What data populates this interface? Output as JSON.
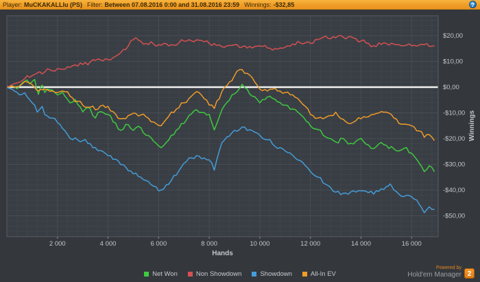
{
  "title_bar": {
    "player_label": "Player:",
    "player_value": "MuCKAKALLlu (PS)",
    "filter_label": "Filter:",
    "filter_value": "Between 07.08.2016 0:00 and 31.08.2016 23:59",
    "winnings_label": "Winnings:",
    "winnings_value": "-$32,85",
    "help_icon_glyph": "?",
    "bar_color": "#f0a02c"
  },
  "footer": {
    "powered_by": "Powered by",
    "brand": "Hold'em Manager",
    "badge": "2",
    "badge_color": "#e8851c"
  },
  "chart_data": {
    "type": "line",
    "title": "",
    "xlabel": "Hands",
    "ylabel": "Winnings",
    "xlim": [
      0,
      17050
    ],
    "ylim": [
      -58,
      27.5
    ],
    "grid": "major+minor",
    "zero_line": true,
    "zero_line_color": "#f2f2f2",
    "legend_position": "bottom",
    "x_ticks": [
      2000,
      4000,
      6000,
      8000,
      10000,
      12000,
      14000,
      16000
    ],
    "x_tick_labels": [
      "2 000",
      "4 000",
      "6 000",
      "8 000",
      "10 000",
      "12 000",
      "14 000",
      "16 000"
    ],
    "y_ticks": [
      20,
      10,
      0,
      -10,
      -20,
      -30,
      -40,
      -50
    ],
    "y_tick_labels": [
      "$20,00",
      "$10,00",
      "$0,00",
      "-$10,00",
      "-$20,00",
      "-$30,00",
      "-$40,00",
      "-$50,00"
    ],
    "series": [
      {
        "name": "Net Won",
        "color": "#3ecb3e",
        "points": [
          [
            0,
            0
          ],
          [
            200,
            0.5
          ],
          [
            400,
            -0.6
          ],
          [
            600,
            1.5
          ],
          [
            800,
            2.8
          ],
          [
            900,
            1.2
          ],
          [
            1000,
            2.2
          ],
          [
            1100,
            3.0
          ],
          [
            1250,
            -2.8
          ],
          [
            1400,
            0.8
          ],
          [
            1500,
            -2.1
          ],
          [
            1700,
            -1.0
          ],
          [
            2000,
            -3.0
          ],
          [
            2200,
            -2.0
          ],
          [
            2500,
            -6.1
          ],
          [
            2700,
            -4.8
          ],
          [
            3000,
            -9.6
          ],
          [
            3200,
            -7.8
          ],
          [
            3500,
            -12.0
          ],
          [
            3700,
            -9.5
          ],
          [
            4000,
            -10.6
          ],
          [
            4200,
            -13.5
          ],
          [
            4500,
            -16.8
          ],
          [
            4700,
            -14.5
          ],
          [
            5000,
            -16.8
          ],
          [
            5200,
            -15.2
          ],
          [
            5500,
            -18.7
          ],
          [
            5800,
            -21.0
          ],
          [
            6100,
            -23.5
          ],
          [
            6300,
            -21.5
          ],
          [
            6500,
            -18.7
          ],
          [
            6800,
            -16.0
          ],
          [
            7000,
            -14.1
          ],
          [
            7200,
            -11.0
          ],
          [
            7500,
            -8.8
          ],
          [
            7700,
            -9.8
          ],
          [
            8000,
            -10.6
          ],
          [
            8200,
            -16.6
          ],
          [
            8400,
            -11.5
          ],
          [
            8500,
            -8.8
          ],
          [
            8800,
            -5.0
          ],
          [
            9000,
            -2.6
          ],
          [
            9300,
            1.1
          ],
          [
            9500,
            -0.8
          ],
          [
            9700,
            -3.5
          ],
          [
            10000,
            -6.1
          ],
          [
            10300,
            -3.8
          ],
          [
            10500,
            -4.4
          ],
          [
            10800,
            -6.0
          ],
          [
            11000,
            -7.0
          ],
          [
            11300,
            -8.5
          ],
          [
            11500,
            -9.7
          ],
          [
            12000,
            -15.0
          ],
          [
            12300,
            -16.5
          ],
          [
            12500,
            -18.7
          ],
          [
            12800,
            -20.0
          ],
          [
            13000,
            -21.3
          ],
          [
            13300,
            -20.0
          ],
          [
            13500,
            -22.1
          ],
          [
            13800,
            -21.0
          ],
          [
            14000,
            -19.9
          ],
          [
            14300,
            -22.5
          ],
          [
            14500,
            -23.9
          ],
          [
            14800,
            -21.5
          ],
          [
            15000,
            -22.6
          ],
          [
            15300,
            -24.0
          ],
          [
            15500,
            -24.8
          ],
          [
            15800,
            -23.5
          ],
          [
            16000,
            -25.7
          ],
          [
            16300,
            -29.5
          ],
          [
            16500,
            -32.8
          ],
          [
            16700,
            -30.5
          ],
          [
            16900,
            -32.85
          ]
        ]
      },
      {
        "name": "Non Showdown",
        "color": "#d55152",
        "points": [
          [
            0,
            0
          ],
          [
            200,
            1.0
          ],
          [
            400,
            1.6
          ],
          [
            500,
            1.9
          ],
          [
            700,
            3.2
          ],
          [
            1000,
            4.5
          ],
          [
            1200,
            5.5
          ],
          [
            1500,
            5.9
          ],
          [
            1700,
            6.8
          ],
          [
            2000,
            7.2
          ],
          [
            2300,
            7.0
          ],
          [
            2500,
            7.7
          ],
          [
            2800,
            8.2
          ],
          [
            3000,
            8.8
          ],
          [
            3300,
            9.8
          ],
          [
            3500,
            10.4
          ],
          [
            3800,
            10.2
          ],
          [
            4000,
            10.7
          ],
          [
            4300,
            12.0
          ],
          [
            4500,
            13.4
          ],
          [
            4800,
            16.0
          ],
          [
            5000,
            18.5
          ],
          [
            5100,
            19.2
          ],
          [
            5300,
            17.8
          ],
          [
            5500,
            17.0
          ],
          [
            5800,
            16.8
          ],
          [
            6000,
            16.5
          ],
          [
            6300,
            16.9
          ],
          [
            6500,
            16.5
          ],
          [
            6800,
            17.2
          ],
          [
            7000,
            17.9
          ],
          [
            7300,
            18.0
          ],
          [
            7500,
            18.4
          ],
          [
            7800,
            17.6
          ],
          [
            8000,
            17.0
          ],
          [
            8300,
            16.2
          ],
          [
            8500,
            15.7
          ],
          [
            8800,
            16.2
          ],
          [
            9000,
            16.5
          ],
          [
            9300,
            15.6
          ],
          [
            9500,
            15.2
          ],
          [
            9800,
            15.8
          ],
          [
            10000,
            16.1
          ],
          [
            10300,
            15.2
          ],
          [
            10500,
            14.4
          ],
          [
            10800,
            15.2
          ],
          [
            11000,
            15.5
          ],
          [
            11300,
            16.8
          ],
          [
            11500,
            17.8
          ],
          [
            11800,
            17.2
          ],
          [
            12000,
            17.0
          ],
          [
            12300,
            18.5
          ],
          [
            12500,
            19.3
          ],
          [
            12800,
            18.8
          ],
          [
            13000,
            19.2
          ],
          [
            13300,
            19.4
          ],
          [
            13500,
            19.6
          ],
          [
            13800,
            18.8
          ],
          [
            14000,
            17.9
          ],
          [
            14300,
            17.0
          ],
          [
            14500,
            16.1
          ],
          [
            14800,
            16.6
          ],
          [
            15000,
            17.0
          ],
          [
            15300,
            16.7
          ],
          [
            15500,
            16.5
          ],
          [
            15800,
            16.3
          ],
          [
            16000,
            16.1
          ],
          [
            16300,
            16.4
          ],
          [
            16500,
            16.5
          ],
          [
            16700,
            15.8
          ],
          [
            16900,
            16.1
          ]
        ]
      },
      {
        "name": "Showdown",
        "color": "#449dda",
        "points": [
          [
            0,
            0
          ],
          [
            200,
            -0.8
          ],
          [
            400,
            -2.0
          ],
          [
            500,
            -3.0
          ],
          [
            700,
            -2.2
          ],
          [
            1000,
            -6.1
          ],
          [
            1200,
            -9.7
          ],
          [
            1400,
            -7.5
          ],
          [
            1500,
            -10.6
          ],
          [
            1800,
            -12.0
          ],
          [
            2000,
            -13.7
          ],
          [
            2300,
            -17.0
          ],
          [
            2500,
            -19.9
          ],
          [
            2800,
            -20.5
          ],
          [
            3000,
            -20.8
          ],
          [
            3300,
            -22.0
          ],
          [
            3500,
            -23.5
          ],
          [
            3800,
            -25.0
          ],
          [
            4000,
            -26.6
          ],
          [
            4300,
            -28.0
          ],
          [
            4500,
            -30.1
          ],
          [
            4800,
            -32.5
          ],
          [
            5000,
            -33.7
          ],
          [
            5300,
            -35.0
          ],
          [
            5500,
            -36.3
          ],
          [
            5800,
            -38.5
          ],
          [
            6000,
            -40.3
          ],
          [
            6300,
            -38.0
          ],
          [
            6500,
            -36.3
          ],
          [
            6800,
            -32.5
          ],
          [
            7000,
            -29.6
          ],
          [
            7300,
            -27.5
          ],
          [
            7500,
            -26.6
          ],
          [
            7800,
            -27.5
          ],
          [
            8000,
            -28.3
          ],
          [
            8200,
            -32.3
          ],
          [
            8500,
            -21.6
          ],
          [
            8800,
            -19.0
          ],
          [
            9000,
            -16.8
          ],
          [
            9300,
            -15.5
          ],
          [
            9500,
            -16.8
          ],
          [
            9800,
            -17.5
          ],
          [
            10000,
            -18.7
          ],
          [
            10300,
            -20.5
          ],
          [
            10500,
            -22.1
          ],
          [
            10800,
            -23.5
          ],
          [
            11000,
            -24.8
          ],
          [
            11300,
            -26.5
          ],
          [
            11500,
            -28.3
          ],
          [
            11800,
            -30.5
          ],
          [
            12000,
            -32.8
          ],
          [
            12300,
            -35.0
          ],
          [
            12500,
            -37.2
          ],
          [
            12800,
            -39.0
          ],
          [
            13000,
            -40.8
          ],
          [
            13300,
            -41.2
          ],
          [
            13500,
            -41.6
          ],
          [
            13800,
            -40.8
          ],
          [
            14000,
            -40.3
          ],
          [
            14300,
            -41.0
          ],
          [
            14500,
            -41.6
          ],
          [
            14800,
            -39.5
          ],
          [
            15000,
            -38.6
          ],
          [
            15150,
            -37.6
          ],
          [
            15300,
            -40.0
          ],
          [
            15500,
            -41.6
          ],
          [
            15800,
            -42.0
          ],
          [
            16000,
            -42.6
          ],
          [
            16300,
            -45.5
          ],
          [
            16500,
            -48.8
          ],
          [
            16700,
            -46.5
          ],
          [
            16900,
            -47.5
          ]
        ]
      },
      {
        "name": "All-In EV",
        "color": "#f09c28",
        "points": [
          [
            0,
            0
          ],
          [
            200,
            0.4
          ],
          [
            400,
            0.2
          ],
          [
            600,
            1.2
          ],
          [
            800,
            2.0
          ],
          [
            1000,
            1.0
          ],
          [
            1250,
            -1.5
          ],
          [
            1500,
            -0.8
          ],
          [
            1800,
            -1.5
          ],
          [
            2000,
            -2.1
          ],
          [
            2300,
            -1.8
          ],
          [
            2500,
            -3.5
          ],
          [
            2800,
            -5.5
          ],
          [
            3000,
            -7.0
          ],
          [
            3300,
            -7.8
          ],
          [
            3500,
            -8.8
          ],
          [
            3800,
            -7.0
          ],
          [
            4000,
            -7.5
          ],
          [
            4300,
            -10.5
          ],
          [
            4500,
            -12.3
          ],
          [
            4800,
            -11.0
          ],
          [
            5000,
            -10.1
          ],
          [
            5300,
            -10.8
          ],
          [
            5500,
            -11.5
          ],
          [
            5800,
            -13.5
          ],
          [
            6100,
            -15.0
          ],
          [
            6300,
            -12.5
          ],
          [
            6500,
            -9.7
          ],
          [
            6800,
            -8.0
          ],
          [
            7000,
            -6.1
          ],
          [
            7300,
            -3.5
          ],
          [
            7500,
            -1.7
          ],
          [
            7800,
            -4.5
          ],
          [
            8000,
            -7.0
          ],
          [
            8200,
            -8.3
          ],
          [
            8500,
            -1.7
          ],
          [
            8800,
            2.0
          ],
          [
            9000,
            4.5
          ],
          [
            9200,
            6.8
          ],
          [
            9500,
            5.4
          ],
          [
            9800,
            2.0
          ],
          [
            10000,
            -0.8
          ],
          [
            10300,
            -1.5
          ],
          [
            10500,
            -0.8
          ],
          [
            10800,
            -1.5
          ],
          [
            11000,
            -2.1
          ],
          [
            11300,
            -3.0
          ],
          [
            11500,
            -4.4
          ],
          [
            11800,
            -7.5
          ],
          [
            12000,
            -10.6
          ],
          [
            12300,
            -12.0
          ],
          [
            12500,
            -12.3
          ],
          [
            12800,
            -11.0
          ],
          [
            13000,
            -9.7
          ],
          [
            13300,
            -12.5
          ],
          [
            13500,
            -14.1
          ],
          [
            13800,
            -13.0
          ],
          [
            14000,
            -12.3
          ],
          [
            14300,
            -11.5
          ],
          [
            14500,
            -10.6
          ],
          [
            14800,
            -9.5
          ],
          [
            15000,
            -9.7
          ],
          [
            15300,
            -12.0
          ],
          [
            15500,
            -14.1
          ],
          [
            15800,
            -14.5
          ],
          [
            16000,
            -15.0
          ],
          [
            16300,
            -17.0
          ],
          [
            16500,
            -19.5
          ],
          [
            16700,
            -18.5
          ],
          [
            16900,
            -20.8
          ]
        ]
      }
    ]
  },
  "legend": {
    "items": [
      {
        "label": "Net Won",
        "color": "#3ecb3e"
      },
      {
        "label": "Non Showdown",
        "color": "#d55152"
      },
      {
        "label": "Showdown",
        "color": "#449dda"
      },
      {
        "label": "All-In EV",
        "color": "#f09c28"
      }
    ]
  }
}
